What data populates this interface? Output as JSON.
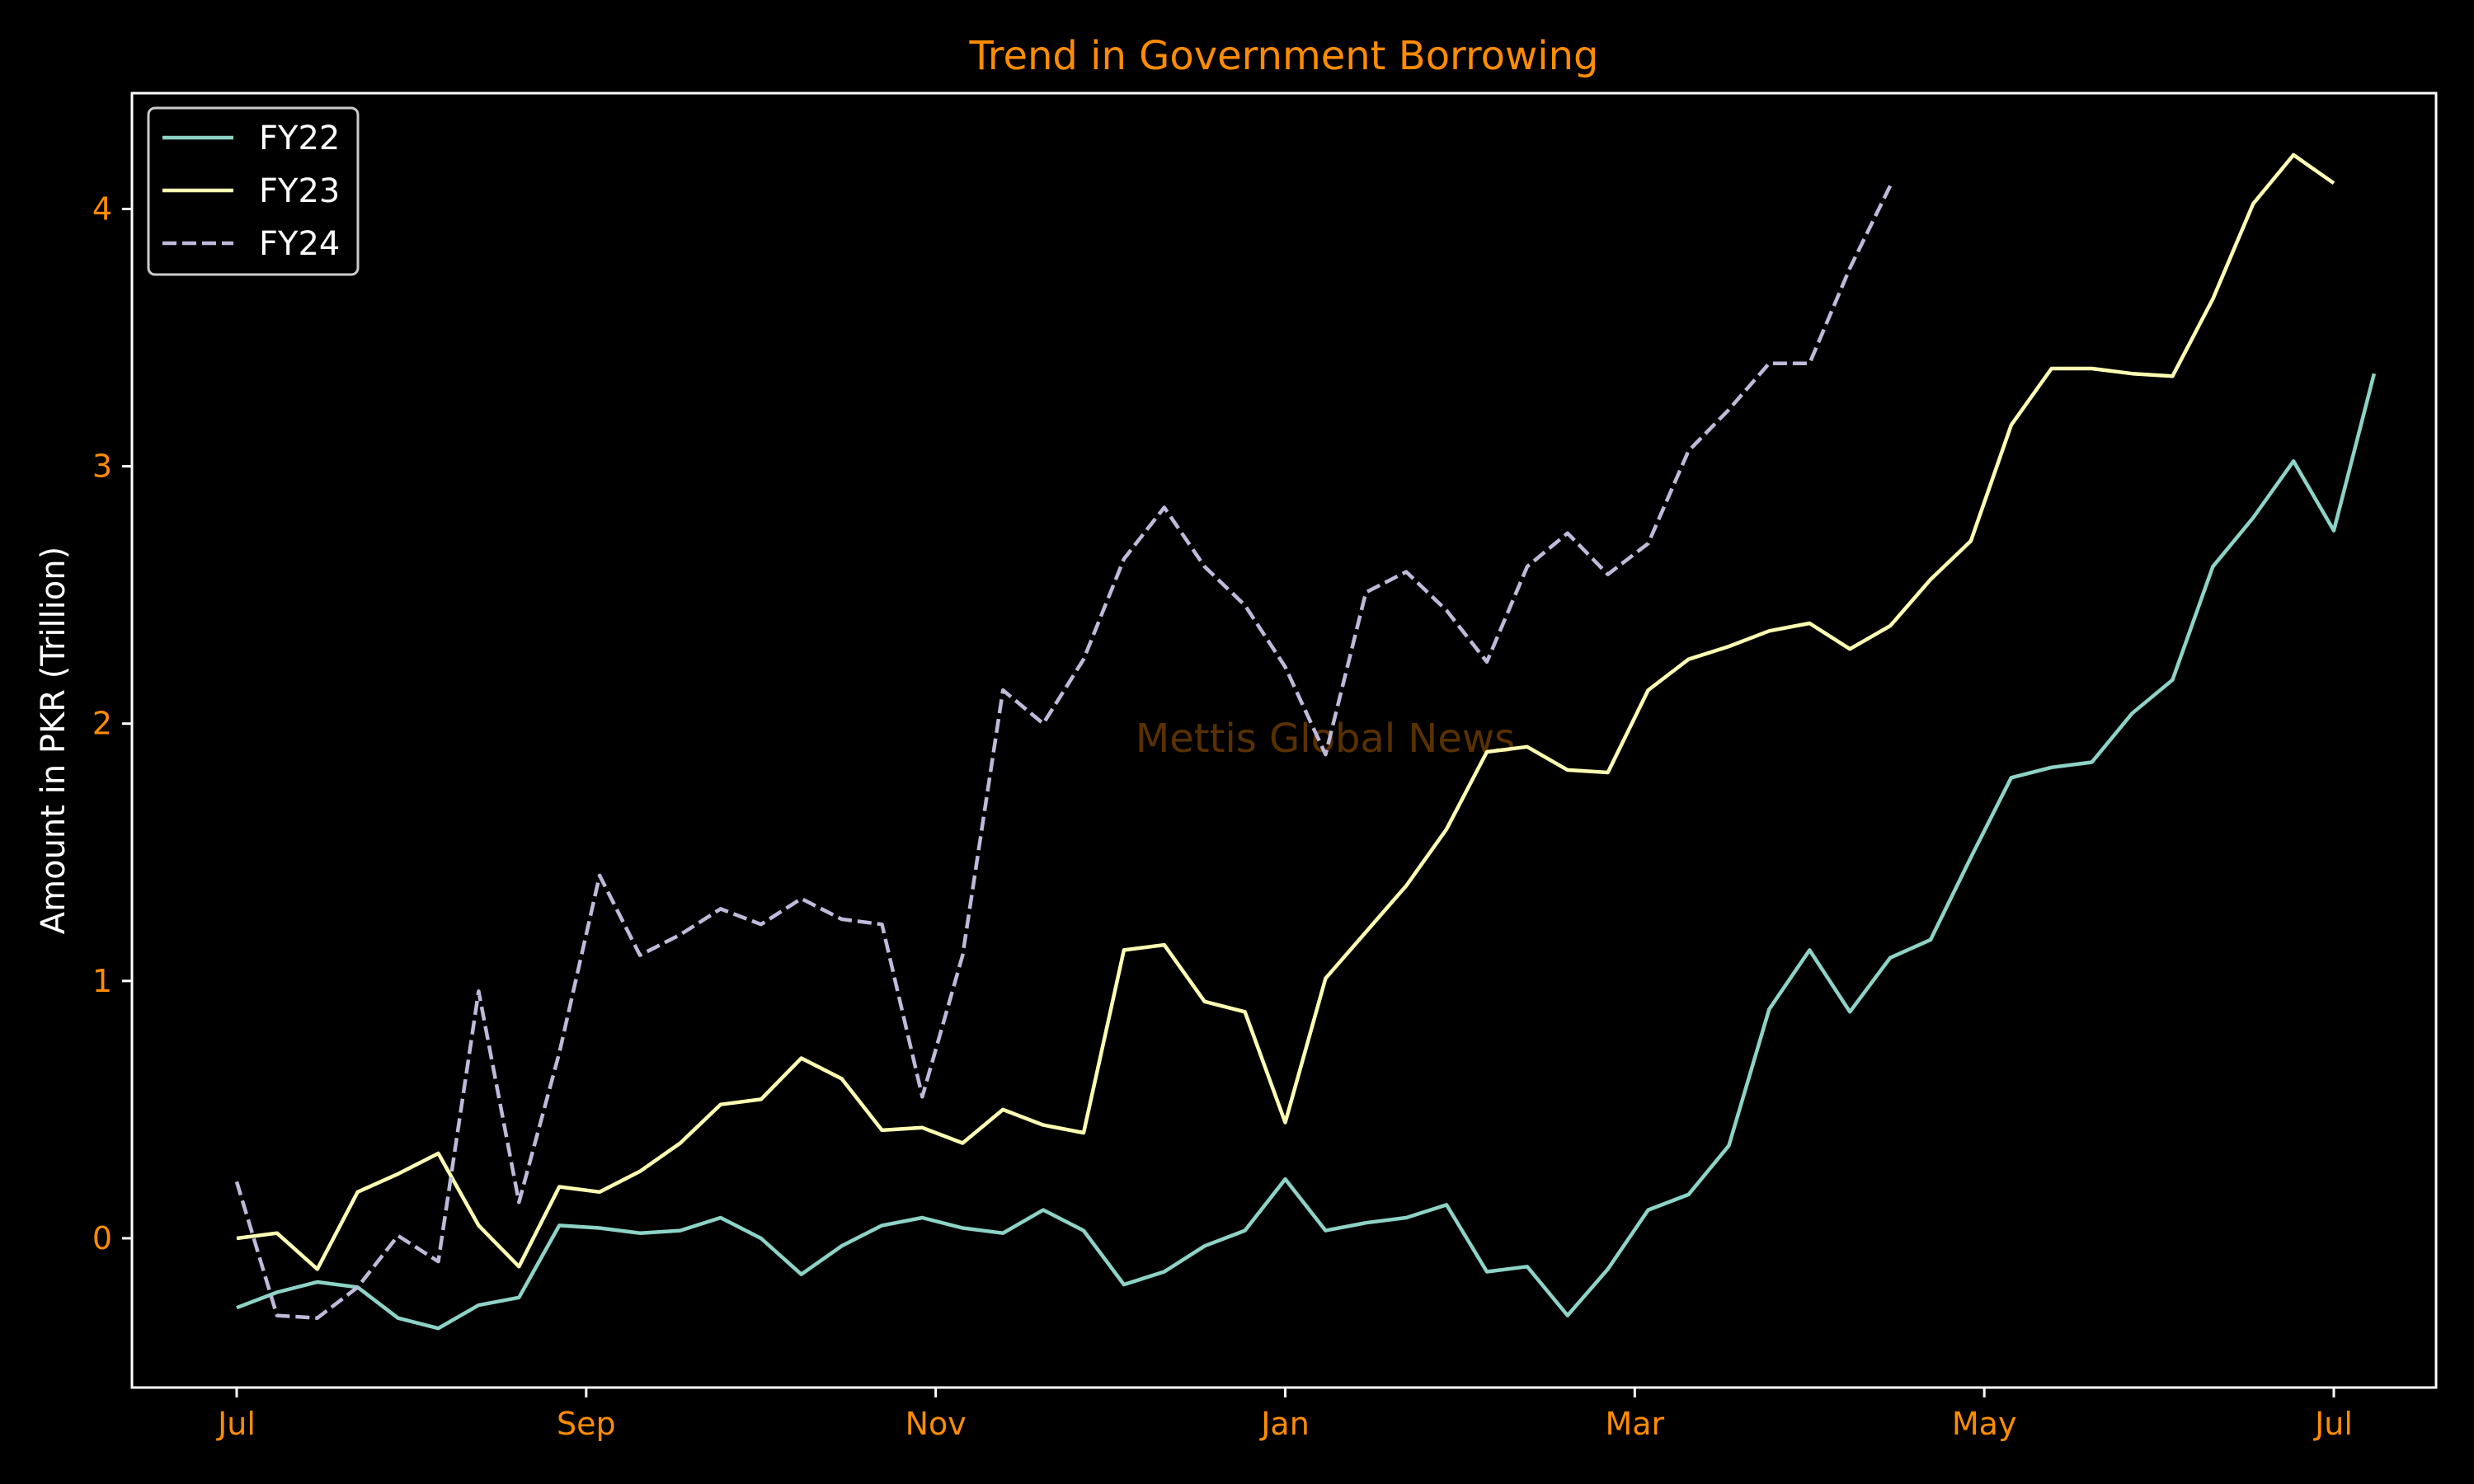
{
  "chart_data": {
    "type": "line",
    "title": "Trend in Government Borrowing",
    "xlabel": "",
    "ylabel": "Amount in PKR (Trillion)",
    "watermark": "Mettis Global News",
    "x_tick_labels": [
      "Jul",
      "Sep",
      "Nov",
      "Jan",
      "Mar",
      "May",
      "Jul"
    ],
    "y_ticks": [
      0,
      1,
      2,
      3,
      4
    ],
    "ylim": [
      -0.58,
      4.45
    ],
    "grid": false,
    "legend_position": "top-left",
    "colors": {
      "background": "#000000",
      "title": "#ff8c00",
      "tick_labels": "#ff8c00",
      "axis_label": "#ffffff",
      "axes": "#ffffff"
    },
    "series": [
      {
        "name": "FY22",
        "color": "#8dd3c7",
        "dash": "solid",
        "values": [
          -0.27,
          -0.21,
          -0.17,
          -0.19,
          -0.31,
          -0.35,
          -0.26,
          -0.23,
          0.05,
          0.04,
          0.02,
          0.03,
          0.08,
          0.0,
          -0.14,
          -0.03,
          0.05,
          0.08,
          0.04,
          0.02,
          0.11,
          0.03,
          -0.18,
          -0.13,
          -0.03,
          0.03,
          0.23,
          0.03,
          0.06,
          0.08,
          0.13,
          -0.13,
          -0.11,
          -0.3,
          -0.12,
          0.11,
          0.17,
          0.36,
          0.89,
          1.12,
          0.88,
          1.09,
          1.16,
          1.48,
          1.79,
          1.83,
          1.85,
          2.04,
          2.17,
          2.61,
          2.8,
          3.02,
          2.75,
          3.36
        ]
      },
      {
        "name": "FY23",
        "color": "#ffffb3",
        "dash": "solid",
        "values": [
          0.0,
          0.02,
          -0.12,
          0.18,
          0.25,
          0.33,
          0.05,
          -0.11,
          0.2,
          0.18,
          0.26,
          0.37,
          0.52,
          0.54,
          0.7,
          0.62,
          0.42,
          0.43,
          0.37,
          0.5,
          0.44,
          0.41,
          1.12,
          1.14,
          0.92,
          0.88,
          0.45,
          1.01,
          1.19,
          1.37,
          1.59,
          1.89,
          1.91,
          1.82,
          1.81,
          2.13,
          2.25,
          2.3,
          2.36,
          2.39,
          2.29,
          2.38,
          2.56,
          2.71,
          3.16,
          3.38,
          3.38,
          3.36,
          3.35,
          3.65,
          4.02,
          4.21,
          4.1
        ]
      },
      {
        "name": "FY24",
        "color": "#bebada",
        "dash": "dashed",
        "values": [
          0.22,
          -0.3,
          -0.31,
          -0.19,
          0.01,
          -0.09,
          0.96,
          0.14,
          0.72,
          1.41,
          1.1,
          1.18,
          1.28,
          1.22,
          1.32,
          1.24,
          1.22,
          0.55,
          1.1,
          2.13,
          2.0,
          2.25,
          2.64,
          2.84,
          2.61,
          2.46,
          2.22,
          1.88,
          2.51,
          2.59,
          2.44,
          2.24,
          2.61,
          2.74,
          2.58,
          2.7,
          3.06,
          3.22,
          3.4,
          3.4,
          3.77,
          4.09
        ]
      }
    ]
  }
}
